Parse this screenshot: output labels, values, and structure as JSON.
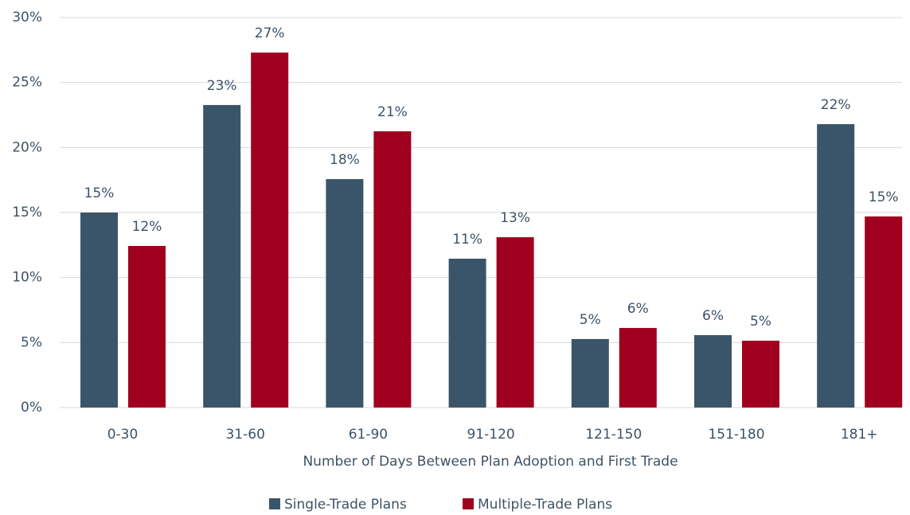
{
  "chart_data": {
    "type": "bar",
    "x_label": "Number of Days Between Plan Adoption and First Trade",
    "categories": [
      "0-30",
      "31-60",
      "61-90",
      "91-120",
      "121-150",
      "151-180",
      "181+"
    ],
    "series": [
      {
        "name": "Single-Trade Plans",
        "color": "#3a556a",
        "values": [
          15.0,
          23.27,
          17.57,
          11.45,
          5.27,
          5.57,
          21.8
        ],
        "value_labels": [
          "15%",
          "23%",
          "18%",
          "11%",
          "5%",
          "6%",
          "22%"
        ]
      },
      {
        "name": "Multiple-Trade Plans",
        "color": "#a0001e",
        "values": [
          12.43,
          27.3,
          21.25,
          13.1,
          6.12,
          5.14,
          14.7
        ],
        "value_labels": [
          "12%",
          "27%",
          "21%",
          "13%",
          "6%",
          "5%",
          "15%"
        ]
      }
    ],
    "ylim": [
      0,
      30
    ],
    "yticks": [
      {
        "value": 0,
        "label": "0%"
      },
      {
        "value": 5,
        "label": "5%"
      },
      {
        "value": 10,
        "label": "10%"
      },
      {
        "value": 15,
        "label": "15%"
      },
      {
        "value": 20,
        "label": "20%"
      },
      {
        "value": 25,
        "label": "25%"
      },
      {
        "value": 30,
        "label": "30%"
      }
    ],
    "grid": true,
    "legend": "bottom"
  }
}
